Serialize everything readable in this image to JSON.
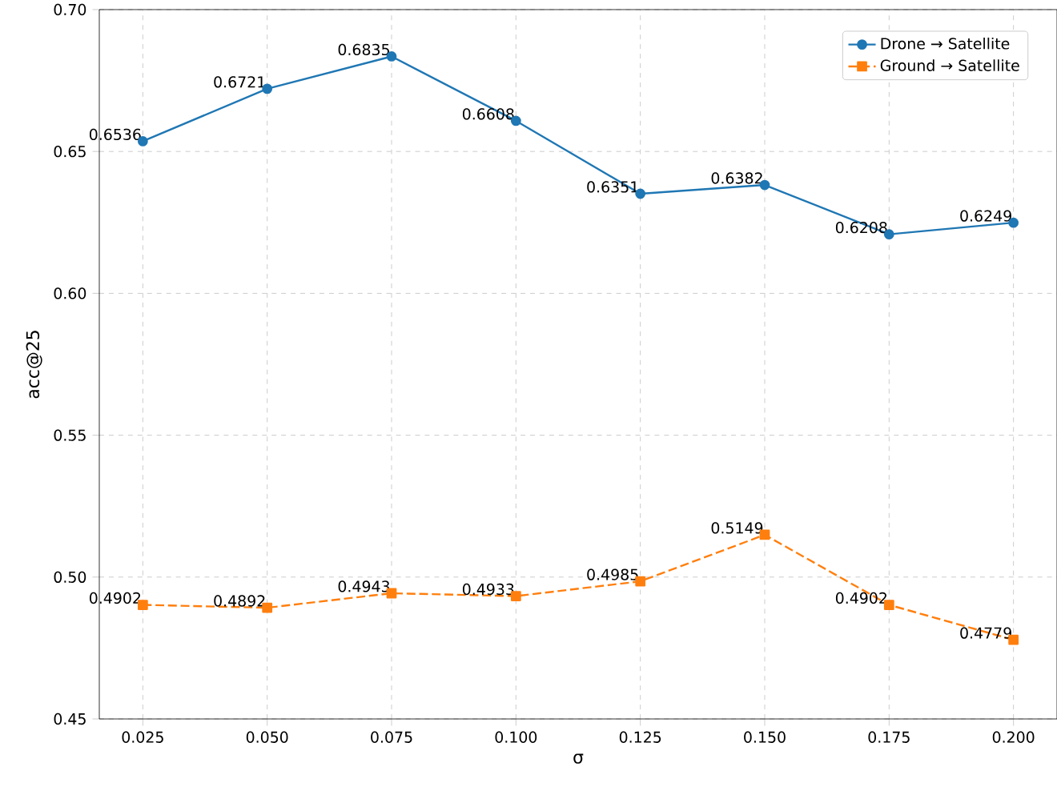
{
  "chart_data": {
    "type": "line",
    "xlabel": "σ",
    "ylabel": "acc@25",
    "x": [
      0.025,
      0.05,
      0.075,
      0.1,
      0.125,
      0.15,
      0.175,
      0.2
    ],
    "series": [
      {
        "name": "Drone → Satellite",
        "color": "#1f77b4",
        "marker": "circle",
        "line_style": "solid",
        "values": [
          0.6536,
          0.6721,
          0.6835,
          0.6608,
          0.6351,
          0.6382,
          0.6208,
          0.6249
        ]
      },
      {
        "name": "Ground → Satellite",
        "color": "#ff7f0e",
        "marker": "square",
        "line_style": "dashed",
        "values": [
          0.4902,
          0.4892,
          0.4943,
          0.4933,
          0.4985,
          0.5149,
          0.4902,
          0.4779
        ]
      }
    ],
    "xlim": [
      0.01625,
      0.20875
    ],
    "ylim": [
      0.45,
      0.7
    ],
    "xticks": [
      {
        "value": 0.025,
        "label": "0.025"
      },
      {
        "value": 0.05,
        "label": "0.050"
      },
      {
        "value": 0.075,
        "label": "0.075"
      },
      {
        "value": 0.1,
        "label": "0.100"
      },
      {
        "value": 0.125,
        "label": "0.125"
      },
      {
        "value": 0.15,
        "label": "0.150"
      },
      {
        "value": 0.175,
        "label": "0.175"
      },
      {
        "value": 0.2,
        "label": "0.200"
      }
    ],
    "yticks": [
      {
        "value": 0.45,
        "label": "0.45"
      },
      {
        "value": 0.5,
        "label": "0.50"
      },
      {
        "value": 0.55,
        "label": "0.55"
      },
      {
        "value": 0.6,
        "label": "0.60"
      },
      {
        "value": 0.65,
        "label": "0.65"
      },
      {
        "value": 0.7,
        "label": "0.70"
      }
    ],
    "grid": true,
    "legend": "top right",
    "data_labels": true
  }
}
